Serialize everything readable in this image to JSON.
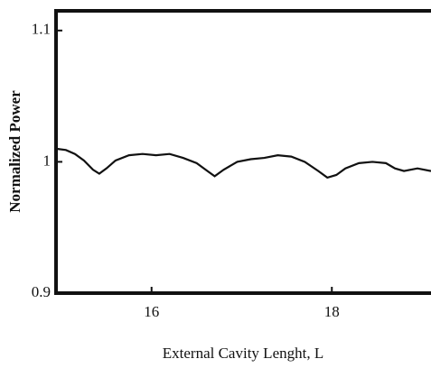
{
  "chart_data": {
    "type": "line",
    "xlabel": "External Cavity Lenght, L",
    "ylabel": "Normalized Power",
    "x": [
      14.94,
      15.05,
      15.15,
      15.25,
      15.35,
      15.42,
      15.5,
      15.6,
      15.75,
      15.9,
      16.05,
      16.2,
      16.35,
      16.5,
      16.62,
      16.7,
      16.8,
      16.95,
      17.1,
      17.25,
      17.4,
      17.55,
      17.7,
      17.85,
      17.95,
      18.05,
      18.15,
      18.3,
      18.45,
      18.6,
      18.7,
      18.8,
      18.95,
      19.1
    ],
    "series": [
      {
        "color": "#111111",
        "values": [
          1.01,
          1.009,
          1.006,
          1.001,
          0.994,
          0.991,
          0.995,
          1.001,
          1.005,
          1.006,
          1.005,
          1.006,
          1.003,
          0.999,
          0.993,
          0.989,
          0.994,
          1.0,
          1.002,
          1.003,
          1.005,
          1.004,
          1.0,
          0.993,
          0.988,
          0.99,
          0.995,
          0.999,
          1.0,
          0.999,
          0.995,
          0.993,
          0.995,
          0.993
        ]
      }
    ],
    "xlim": [
      14.94,
      19.1
    ],
    "ylim": [
      0.9,
      1.115
    ],
    "xticks": [
      16,
      18
    ],
    "yticks": [
      0.9,
      1,
      1.1
    ]
  }
}
